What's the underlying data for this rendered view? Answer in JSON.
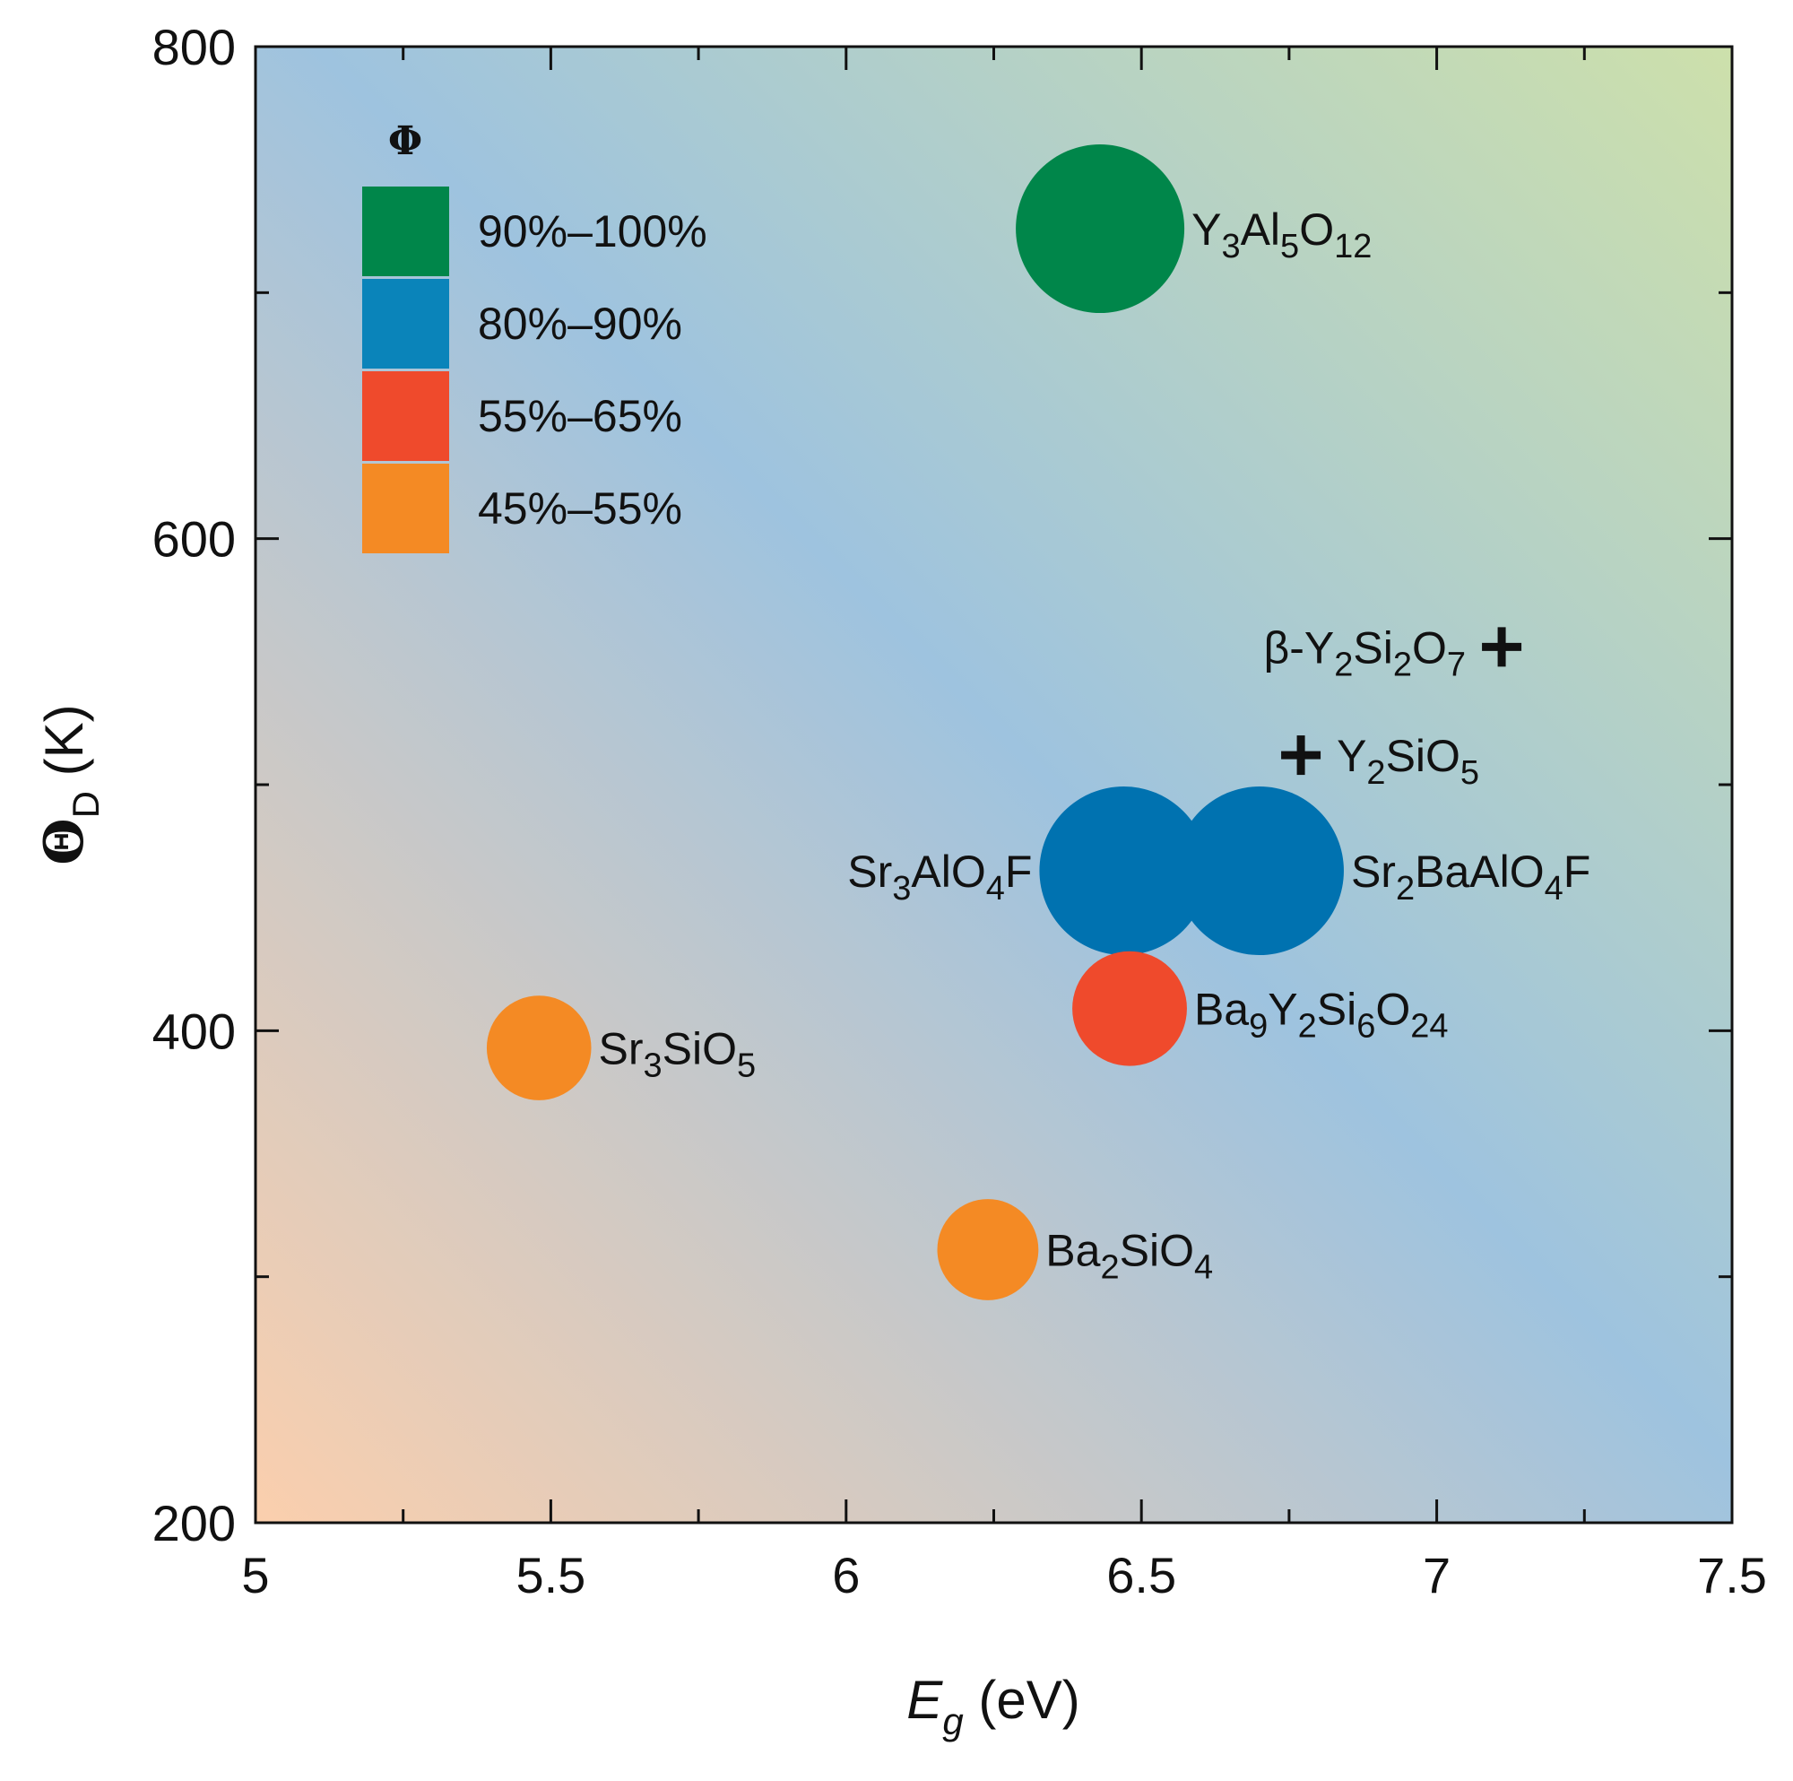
{
  "chart_data": {
    "type": "scatter",
    "xlabel": {
      "main": "E",
      "sub": "g",
      "unit": " (eV)"
    },
    "ylabel": {
      "main": "Θ",
      "sub": "D",
      "unit": " (K)"
    },
    "xlim": [
      5,
      7.5
    ],
    "ylim": [
      200,
      800
    ],
    "xticks": [
      5,
      5.5,
      6,
      6.5,
      7,
      7.5
    ],
    "xtick_labels": [
      "5",
      "5.5",
      "6",
      "6.5",
      "7",
      "7.5"
    ],
    "yticks": [
      200,
      400,
      600,
      800
    ],
    "ytick_labels": [
      "200",
      "400",
      "600",
      "800"
    ],
    "xminor": [
      5.25,
      5.75,
      6.25,
      6.75,
      7.25
    ],
    "yminor": [
      300,
      500,
      700
    ],
    "legend": {
      "title": "Φ",
      "placement": "top-left",
      "entries": [
        {
          "label": "90%–100%",
          "color": "#00864a"
        },
        {
          "label": "80%–90%",
          "color": "#0a84ba"
        },
        {
          "label": "55%–65%",
          "color": "#ef4a2c"
        },
        {
          "label": "45%–55%",
          "color": "#f48a24"
        }
      ]
    },
    "points": [
      {
        "name": "Y3Al5O12",
        "label": [
          [
            "Y",
            ""
          ],
          [
            "3",
            "sub"
          ],
          [
            "Al",
            ""
          ],
          [
            "5",
            "sub"
          ],
          [
            "O",
            ""
          ],
          [
            "12",
            "sub"
          ]
        ],
        "x": 6.43,
        "y": 726,
        "category": "90%–100%",
        "color": "#00864a",
        "size": 1.0,
        "marker": "circle",
        "label_side": "right"
      },
      {
        "name": "Sr3AlO4F",
        "label": [
          [
            "Sr",
            ""
          ],
          [
            "3",
            "sub"
          ],
          [
            "AlO",
            ""
          ],
          [
            "4",
            "sub"
          ],
          [
            "F",
            ""
          ]
        ],
        "x": 6.47,
        "y": 465,
        "category": "80%–90%",
        "color": "#0072b0",
        "size": 1.0,
        "marker": "circle",
        "label_side": "left"
      },
      {
        "name": "Sr2BaAlO4F",
        "label": [
          [
            "Sr",
            ""
          ],
          [
            "2",
            "sub"
          ],
          [
            "BaAlO",
            ""
          ],
          [
            "4",
            "sub"
          ],
          [
            "F",
            ""
          ]
        ],
        "x": 6.7,
        "y": 465,
        "category": "80%–90%",
        "color": "#0072b0",
        "size": 1.0,
        "marker": "circle",
        "label_side": "right"
      },
      {
        "name": "Ba9Y2Si6O24",
        "label": [
          [
            "Ba",
            ""
          ],
          [
            "9",
            "sub"
          ],
          [
            "Y",
            ""
          ],
          [
            "2",
            "sub"
          ],
          [
            "Si",
            ""
          ],
          [
            "6",
            "sub"
          ],
          [
            "O",
            ""
          ],
          [
            "24",
            "sub"
          ]
        ],
        "x": 6.48,
        "y": 409,
        "category": "55%–65%",
        "color": "#ef4a2c",
        "size": 0.68,
        "marker": "circle",
        "label_side": "right"
      },
      {
        "name": "Sr3SiO5",
        "label": [
          [
            "Sr",
            ""
          ],
          [
            "3",
            "sub"
          ],
          [
            "SiO",
            ""
          ],
          [
            "5",
            "sub"
          ]
        ],
        "x": 5.48,
        "y": 393,
        "category": "45%–55%",
        "color": "#f48a24",
        "size": 0.62,
        "marker": "circle",
        "label_side": "right"
      },
      {
        "name": "Ba2SiO4",
        "label": [
          [
            "Ba",
            ""
          ],
          [
            "2",
            "sub"
          ],
          [
            "SiO",
            ""
          ],
          [
            "4",
            "sub"
          ]
        ],
        "x": 6.24,
        "y": 311,
        "category": "45%–55%",
        "color": "#f48a24",
        "size": 0.6,
        "marker": "circle",
        "label_side": "right"
      },
      {
        "name": "beta-Y2Si2O7",
        "label": [
          [
            "β-Y",
            ""
          ],
          [
            "2",
            "sub"
          ],
          [
            "Si",
            ""
          ],
          [
            "2",
            "sub"
          ],
          [
            "O",
            ""
          ],
          [
            "7",
            "sub"
          ]
        ],
        "x": 7.11,
        "y": 556,
        "category": "",
        "color": "#111111",
        "size": 0.2,
        "marker": "plus",
        "label_side": "left"
      },
      {
        "name": "Y2SiO5",
        "label": [
          [
            "Y",
            ""
          ],
          [
            "2",
            "sub"
          ],
          [
            "SiO",
            ""
          ],
          [
            "5",
            "sub"
          ]
        ],
        "x": 6.77,
        "y": 512,
        "category": "",
        "color": "#111111",
        "size": 0.2,
        "marker": "plus",
        "label_side": "right"
      }
    ],
    "background": {
      "description_colors": [
        "#fbcfad",
        "#9ec3df",
        "#cde0ab"
      ]
    }
  }
}
